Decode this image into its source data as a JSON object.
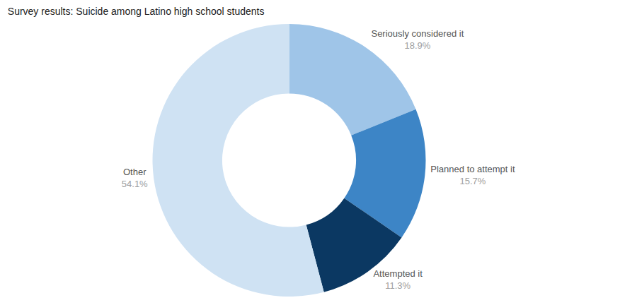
{
  "chart_data": {
    "type": "pie",
    "title": "Survey results: Suicide among Latino high school students",
    "categories": [
      "Seriously considered it",
      "Planned to attempt it",
      "Attempted it",
      "Other"
    ],
    "values": [
      18.9,
      15.7,
      11.3,
      54.1
    ],
    "value_labels": [
      "18.9%",
      "15.7%",
      "11.3%",
      "54.1%"
    ],
    "colors": [
      "#9fc5e8",
      "#3d85c6",
      "#0b3862",
      "#cfe2f3"
    ],
    "data_labels": true
  }
}
